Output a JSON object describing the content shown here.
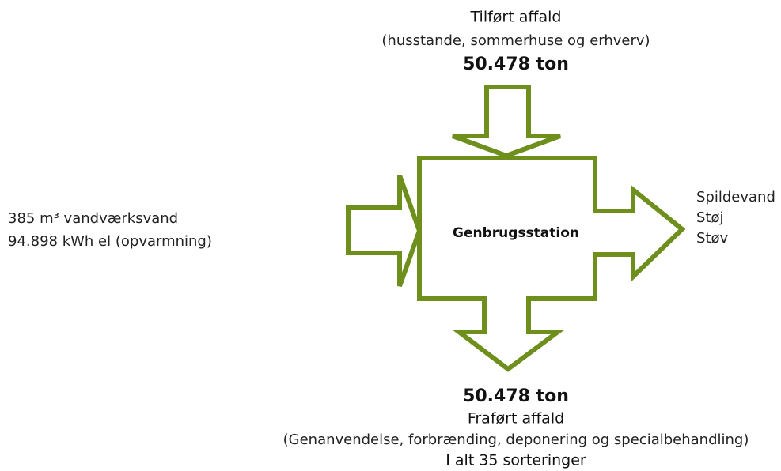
{
  "top": {
    "title": "Tilført affald",
    "subtitle": "(husstande, sommerhuse og erhverv)",
    "amount": "50.478 ton"
  },
  "left": {
    "lines": [
      "385 m³ vandværksvand",
      "94.898 kWh el (opvarmning)"
    ]
  },
  "center": {
    "label": "Genbrugsstation"
  },
  "right": {
    "lines": [
      "Spildevand",
      "Støj",
      "Støv"
    ]
  },
  "bottom": {
    "amount": "50.478 ton",
    "title": "Fraført affald",
    "subtitle": "(Genanvendelse, forbrænding, deponering og specialbehandling)",
    "note": "I alt 35 sorteringer"
  }
}
